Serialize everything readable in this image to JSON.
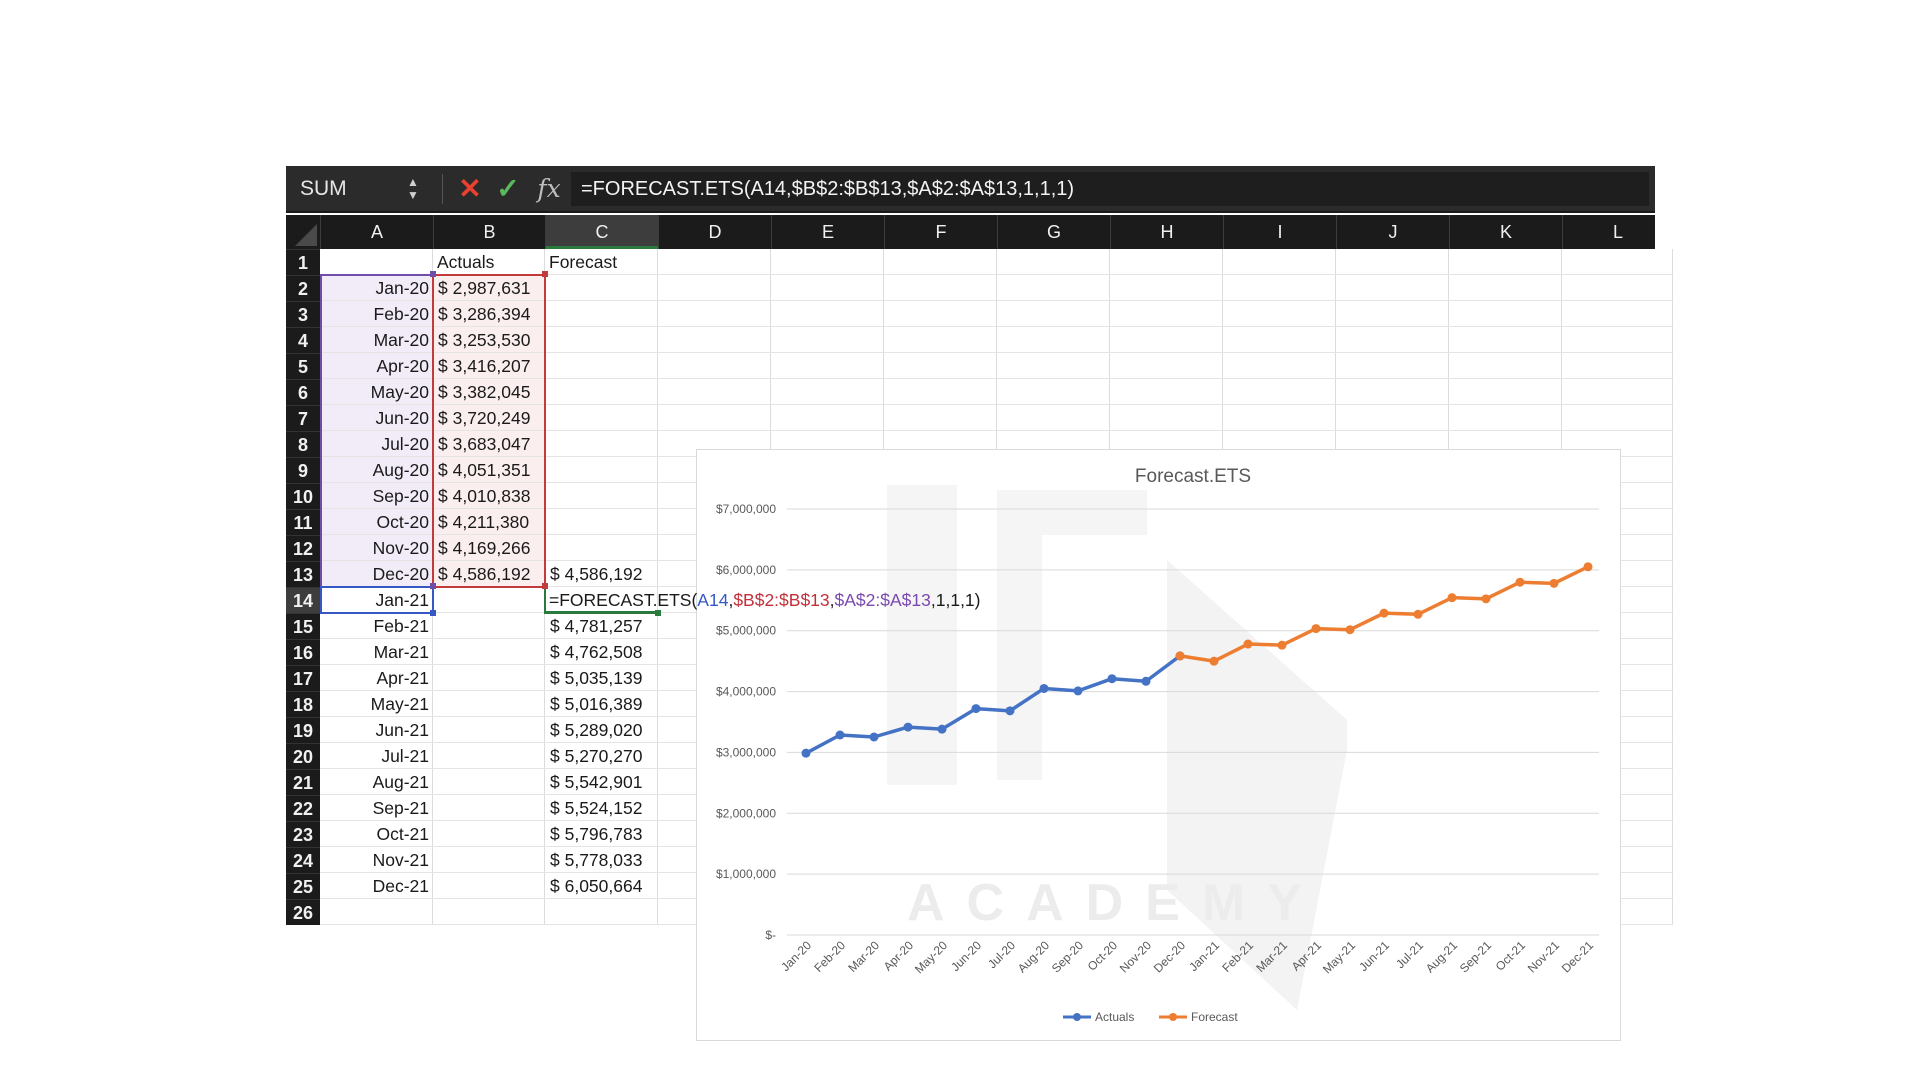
{
  "formula_bar": {
    "name_box": "SUM",
    "formula": "=FORECAST.ETS(A14,$B$2:$B$13,$A$2:$A$13,1,1,1)"
  },
  "columns": [
    "A",
    "B",
    "C",
    "D",
    "E",
    "F",
    "G",
    "H",
    "I",
    "J",
    "K",
    "L"
  ],
  "active_cell": "C14",
  "headers": {
    "b": "Actuals",
    "c": "Forecast"
  },
  "rows": [
    {
      "row": "1",
      "date": "",
      "actual": "",
      "forecast": ""
    },
    {
      "row": "2",
      "date": "Jan-20",
      "actual": "$ 2,987,631",
      "forecast": ""
    },
    {
      "row": "3",
      "date": "Feb-20",
      "actual": "$ 3,286,394",
      "forecast": ""
    },
    {
      "row": "4",
      "date": "Mar-20",
      "actual": "$ 3,253,530",
      "forecast": ""
    },
    {
      "row": "5",
      "date": "Apr-20",
      "actual": "$ 3,416,207",
      "forecast": ""
    },
    {
      "row": "6",
      "date": "May-20",
      "actual": "$ 3,382,045",
      "forecast": ""
    },
    {
      "row": "7",
      "date": "Jun-20",
      "actual": "$ 3,720,249",
      "forecast": ""
    },
    {
      "row": "8",
      "date": "Jul-20",
      "actual": "$ 3,683,047",
      "forecast": ""
    },
    {
      "row": "9",
      "date": "Aug-20",
      "actual": "$ 4,051,351",
      "forecast": ""
    },
    {
      "row": "10",
      "date": "Sep-20",
      "actual": "$ 4,010,838",
      "forecast": ""
    },
    {
      "row": "11",
      "date": "Oct-20",
      "actual": "$ 4,211,380",
      "forecast": ""
    },
    {
      "row": "12",
      "date": "Nov-20",
      "actual": "$ 4,169,266",
      "forecast": ""
    },
    {
      "row": "13",
      "date": "Dec-20",
      "actual": "$ 4,586,192",
      "forecast": "$ 4,586,192"
    },
    {
      "row": "14",
      "date": "Jan-21",
      "actual": "",
      "forecast": ""
    },
    {
      "row": "15",
      "date": "Feb-21",
      "actual": "",
      "forecast": "$ 4,781,257"
    },
    {
      "row": "16",
      "date": "Mar-21",
      "actual": "",
      "forecast": "$ 4,762,508"
    },
    {
      "row": "17",
      "date": "Apr-21",
      "actual": "",
      "forecast": "$ 5,035,139"
    },
    {
      "row": "18",
      "date": "May-21",
      "actual": "",
      "forecast": "$ 5,016,389"
    },
    {
      "row": "19",
      "date": "Jun-21",
      "actual": "",
      "forecast": "$ 5,289,020"
    },
    {
      "row": "20",
      "date": "Jul-21",
      "actual": "",
      "forecast": "$ 5,270,270"
    },
    {
      "row": "21",
      "date": "Aug-21",
      "actual": "",
      "forecast": "$ 5,542,901"
    },
    {
      "row": "22",
      "date": "Sep-21",
      "actual": "",
      "forecast": "$ 5,524,152"
    },
    {
      "row": "23",
      "date": "Oct-21",
      "actual": "",
      "forecast": "$ 5,796,783"
    },
    {
      "row": "24",
      "date": "Nov-21",
      "actual": "",
      "forecast": "$ 5,778,033"
    },
    {
      "row": "25",
      "date": "Dec-21",
      "actual": "",
      "forecast": "$ 6,050,664"
    },
    {
      "row": "26",
      "date": "",
      "actual": "",
      "forecast": ""
    }
  ],
  "editing_formula": {
    "prefix": "=FORECAST.ETS(",
    "ref_a": "A14",
    "sep1": ",",
    "ref_b": "$B$2:$B$13",
    "sep2": ",",
    "ref_c": "$A$2:$A$13",
    "suffix": ",1,1,1)"
  },
  "colors": {
    "actuals": "#4472c4",
    "forecast": "#ed7d31",
    "ref_a": "#3558c5",
    "ref_b": "#c22f3a",
    "ref_c": "#7a49b0",
    "edit_border": "#2a7a3d"
  },
  "icons": {
    "cancel": "close-icon",
    "enter": "check-icon",
    "function": "fx-icon",
    "spinner": "spinner-arrows-icon"
  },
  "watermark_text": "ACADEMY",
  "chart_data": {
    "type": "line",
    "title": "Forecast.ETS",
    "categories": [
      "Jan-20",
      "Feb-20",
      "Mar-20",
      "Apr-20",
      "May-20",
      "Jun-20",
      "Jul-20",
      "Aug-20",
      "Sep-20",
      "Oct-20",
      "Nov-20",
      "Dec-20",
      "Jan-21",
      "Feb-21",
      "Mar-21",
      "Apr-21",
      "May-21",
      "Jun-21",
      "Jul-21",
      "Aug-21",
      "Sep-21",
      "Oct-21",
      "Nov-21",
      "Dec-21"
    ],
    "series": [
      {
        "name": "Actuals",
        "color": "#4472c4",
        "values": [
          2987631,
          3286394,
          3253530,
          3416207,
          3382045,
          3720249,
          3683047,
          4051351,
          4010838,
          4211380,
          4169266,
          4586192,
          null,
          null,
          null,
          null,
          null,
          null,
          null,
          null,
          null,
          null,
          null,
          null
        ]
      },
      {
        "name": "Forecast",
        "color": "#ed7d31",
        "values": [
          null,
          null,
          null,
          null,
          null,
          null,
          null,
          null,
          null,
          null,
          null,
          4586192,
          4500000,
          4781257,
          4762508,
          5035139,
          5016389,
          5289020,
          5270270,
          5542901,
          5524152,
          5796783,
          5778033,
          6050664
        ]
      }
    ],
    "yticks": [
      "$7,000,000",
      "$6,000,000",
      "$5,000,000",
      "$4,000,000",
      "$3,000,000",
      "$2,000,000",
      "$1,000,000",
      "$-"
    ],
    "ylim": [
      0,
      7000000
    ],
    "grid": true,
    "legend": "bottom"
  }
}
